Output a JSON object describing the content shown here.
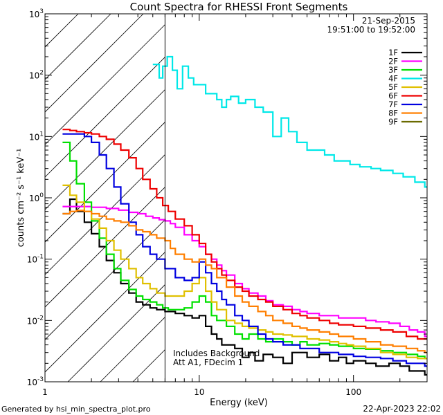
{
  "chart_data": {
    "type": "line",
    "title": "Count Spectra for RHESSI Front Segments",
    "xlabel": "Energy (keV)",
    "ylabel": "counts cm⁻² s⁻¹ keV⁻¹",
    "xscale": "log",
    "yscale": "log",
    "xlim": [
      1,
      300
    ],
    "ylim": [
      0.001,
      1000
    ],
    "x_ticks": [
      {
        "value": 1,
        "label": "1"
      },
      {
        "value": 10,
        "label": "10"
      },
      {
        "value": 100,
        "label": "100"
      }
    ],
    "y_ticks": [
      {
        "value": 1000,
        "base": "10",
        "exp": "3"
      },
      {
        "value": 100,
        "base": "10",
        "exp": "2"
      },
      {
        "value": 10,
        "base": "10",
        "exp": "1"
      },
      {
        "value": 1,
        "base": "10",
        "exp": "0"
      },
      {
        "value": 0.1,
        "base": "10",
        "exp": "-1"
      },
      {
        "value": 0.01,
        "base": "10",
        "exp": "-2"
      },
      {
        "value": 0.001,
        "base": "10",
        "exp": "-3"
      }
    ],
    "date": "21-Sep-2015",
    "time_range": "19:51:00 to 19:52:00",
    "attenuator_cutoff_kev": 6,
    "annotations": [
      "Includes Background",
      "Att A1, FDecim 1"
    ],
    "series": [
      {
        "name": "1F",
        "color": "#000000",
        "x": [
          1.3,
          1.45,
          1.6,
          1.8,
          2.0,
          2.25,
          2.5,
          2.8,
          3.1,
          3.5,
          3.9,
          4.3,
          4.8,
          5.3,
          6.0,
          7,
          8,
          9,
          10,
          11,
          12,
          13,
          14,
          15,
          17,
          19,
          21,
          23,
          26,
          30,
          35,
          40,
          50,
          60,
          70,
          80,
          90,
          100,
          120,
          140,
          170,
          200,
          230,
          260,
          290
        ],
        "y": [
          0.55,
          0.95,
          0.6,
          0.4,
          0.26,
          0.16,
          0.095,
          0.06,
          0.04,
          0.028,
          0.02,
          0.018,
          0.016,
          0.015,
          0.014,
          0.013,
          0.012,
          0.011,
          0.012,
          0.008,
          0.006,
          0.005,
          0.004,
          0.004,
          0.0035,
          0.0025,
          0.003,
          0.0022,
          0.0028,
          0.0025,
          0.002,
          0.003,
          0.0025,
          0.0028,
          0.0022,
          0.0025,
          0.002,
          0.0022,
          0.002,
          0.0018,
          0.002,
          0.0018,
          0.0015,
          0.0015,
          0.0013
        ]
      },
      {
        "name": "2F",
        "color": "#ff00ff",
        "x": [
          1.3,
          1.6,
          2.0,
          2.5,
          3.0,
          3.5,
          4.0,
          4.5,
          5.0,
          5.5,
          6.0,
          6.5,
          7,
          8,
          9,
          10,
          11,
          12,
          13,
          14,
          15,
          17,
          19,
          21,
          24,
          27,
          30,
          35,
          40,
          45,
          50,
          60,
          70,
          80,
          90,
          100,
          120,
          140,
          170,
          200,
          230,
          260,
          290
        ],
        "y": [
          0.72,
          0.72,
          0.7,
          0.67,
          0.63,
          0.58,
          0.55,
          0.5,
          0.47,
          0.44,
          0.42,
          0.38,
          0.33,
          0.25,
          0.2,
          0.16,
          0.12,
          0.1,
          0.08,
          0.065,
          0.055,
          0.04,
          0.033,
          0.028,
          0.025,
          0.021,
          0.018,
          0.017,
          0.015,
          0.014,
          0.013,
          0.012,
          0.012,
          0.011,
          0.011,
          0.011,
          0.01,
          0.0095,
          0.009,
          0.008,
          0.007,
          0.0065,
          0.0055
        ]
      },
      {
        "name": "3F",
        "color": "#00e000",
        "x": [
          1.3,
          1.45,
          1.6,
          1.8,
          2.0,
          2.25,
          2.5,
          2.8,
          3.1,
          3.5,
          3.9,
          4.3,
          4.8,
          5.3,
          5.8,
          6.3,
          7,
          8,
          9,
          10,
          11,
          12,
          13,
          15,
          17,
          19,
          21,
          24,
          27,
          30,
          35,
          40,
          45,
          50,
          60,
          70,
          80,
          100,
          120,
          150,
          180,
          220,
          260,
          290
        ],
        "y": [
          8,
          4,
          1.7,
          0.85,
          0.42,
          0.22,
          0.12,
          0.07,
          0.045,
          0.032,
          0.025,
          0.022,
          0.02,
          0.018,
          0.016,
          0.015,
          0.015,
          0.016,
          0.02,
          0.025,
          0.02,
          0.012,
          0.01,
          0.008,
          0.006,
          0.005,
          0.006,
          0.005,
          0.0045,
          0.005,
          0.0045,
          0.004,
          0.0045,
          0.004,
          0.0042,
          0.004,
          0.0038,
          0.0035,
          0.0034,
          0.0032,
          0.003,
          0.0028,
          0.0026,
          0.0024
        ]
      },
      {
        "name": "4F",
        "color": "#00e8e8",
        "x": [
          5.0,
          5.5,
          5.8,
          6.2,
          6.7,
          7.2,
          7.8,
          8.5,
          9.2,
          10,
          11,
          12,
          13,
          14,
          15,
          16,
          18,
          20,
          23,
          26,
          30,
          34,
          38,
          43,
          50,
          58,
          65,
          75,
          85,
          95,
          110,
          130,
          150,
          180,
          210,
          250,
          290
        ],
        "y": [
          150,
          90,
          140,
          200,
          120,
          60,
          140,
          90,
          70,
          70,
          50,
          50,
          40,
          30,
          40,
          45,
          35,
          40,
          30,
          25,
          10,
          20,
          12,
          8,
          6,
          6,
          5,
          4,
          4,
          3.5,
          3.2,
          3.0,
          2.8,
          2.5,
          2.2,
          1.8,
          1.5
        ]
      },
      {
        "name": "5F",
        "color": "#e0c000",
        "x": [
          1.3,
          1.45,
          1.6,
          1.8,
          2.0,
          2.25,
          2.5,
          2.8,
          3.1,
          3.5,
          3.9,
          4.3,
          4.8,
          5.3,
          6.0,
          7,
          8,
          9,
          10,
          11,
          12,
          13,
          15,
          17,
          19,
          21,
          24,
          27,
          30,
          35,
          40,
          50,
          60,
          70,
          80,
          90,
          100,
          120,
          150,
          180,
          220,
          260,
          290
        ],
        "y": [
          1.6,
          1.1,
          0.85,
          0.6,
          0.45,
          0.32,
          0.2,
          0.14,
          0.1,
          0.07,
          0.05,
          0.04,
          0.033,
          0.028,
          0.025,
          0.025,
          0.03,
          0.04,
          0.05,
          0.03,
          0.02,
          0.015,
          0.01,
          0.009,
          0.008,
          0.0075,
          0.007,
          0.0065,
          0.006,
          0.0058,
          0.0055,
          0.005,
          0.0048,
          0.0045,
          0.0042,
          0.004,
          0.0038,
          0.0035,
          0.003,
          0.0028,
          0.0025,
          0.0024,
          0.0024
        ]
      },
      {
        "name": "6F",
        "color": "#ee0000",
        "x": [
          1.3,
          1.45,
          1.6,
          1.8,
          2.0,
          2.25,
          2.5,
          2.8,
          3.1,
          3.5,
          3.9,
          4.3,
          4.8,
          5.3,
          5.8,
          6.3,
          7,
          8,
          9,
          10,
          11,
          12,
          13,
          14,
          15,
          17,
          19,
          21,
          24,
          27,
          30,
          35,
          40,
          45,
          50,
          60,
          70,
          80,
          100,
          120,
          150,
          180,
          220,
          260,
          290
        ],
        "y": [
          13,
          12.5,
          12,
          11.5,
          11,
          10,
          9,
          7.5,
          6,
          4.5,
          3,
          2,
          1.4,
          1.0,
          0.75,
          0.6,
          0.45,
          0.35,
          0.25,
          0.18,
          0.12,
          0.09,
          0.07,
          0.055,
          0.045,
          0.035,
          0.03,
          0.025,
          0.022,
          0.02,
          0.017,
          0.015,
          0.013,
          0.012,
          0.011,
          0.01,
          0.009,
          0.0085,
          0.008,
          0.0075,
          0.007,
          0.0065,
          0.0055,
          0.005,
          0.005
        ]
      },
      {
        "name": "7F",
        "color": "#0000e0",
        "x": [
          1.3,
          1.45,
          1.6,
          1.8,
          2.0,
          2.25,
          2.5,
          2.8,
          3.1,
          3.5,
          3.9,
          4.3,
          4.8,
          5.3,
          6.0,
          7,
          8,
          9,
          10,
          11,
          12,
          13,
          14,
          15,
          17,
          19,
          21,
          24,
          27,
          30,
          35,
          40,
          45,
          50,
          60,
          70,
          80,
          100,
          120,
          150,
          180,
          220,
          260,
          290
        ],
        "y": [
          11,
          11,
          11,
          10,
          8,
          5,
          3,
          1.5,
          0.8,
          0.4,
          0.25,
          0.16,
          0.12,
          0.1,
          0.07,
          0.05,
          0.045,
          0.05,
          0.09,
          0.06,
          0.04,
          0.03,
          0.022,
          0.018,
          0.012,
          0.01,
          0.008,
          0.006,
          0.005,
          0.0045,
          0.004,
          0.004,
          0.0035,
          0.0035,
          0.003,
          0.003,
          0.0028,
          0.0026,
          0.0025,
          0.0024,
          0.0022,
          0.002,
          0.002,
          0.0018
        ]
      },
      {
        "name": "8F",
        "color": "#ff7f00",
        "x": [
          1.3,
          1.45,
          1.6,
          1.8,
          2.0,
          2.25,
          2.5,
          2.8,
          3.1,
          3.5,
          3.9,
          4.3,
          4.8,
          5.3,
          6.0,
          6.5,
          7,
          8,
          9,
          10,
          11,
          12,
          13,
          15,
          17,
          19,
          21,
          24,
          27,
          30,
          35,
          40,
          45,
          50,
          60,
          70,
          80,
          100,
          120,
          150,
          180,
          220,
          260,
          290
        ],
        "y": [
          0.55,
          0.6,
          0.62,
          0.6,
          0.55,
          0.5,
          0.45,
          0.42,
          0.4,
          0.35,
          0.3,
          0.28,
          0.25,
          0.22,
          0.2,
          0.15,
          0.12,
          0.1,
          0.09,
          0.1,
          0.08,
          0.07,
          0.05,
          0.035,
          0.025,
          0.02,
          0.017,
          0.014,
          0.012,
          0.01,
          0.009,
          0.008,
          0.0075,
          0.007,
          0.0065,
          0.006,
          0.0055,
          0.005,
          0.0045,
          0.004,
          0.0038,
          0.0035,
          0.0032,
          0.003
        ]
      },
      {
        "name": "9F",
        "color": "#6b6b00",
        "x": [],
        "y": []
      }
    ]
  },
  "footer": {
    "generator": "Generated by hsi_min_spectra_plot.pro",
    "timestamp": "22-Apr-2023 22:02"
  }
}
